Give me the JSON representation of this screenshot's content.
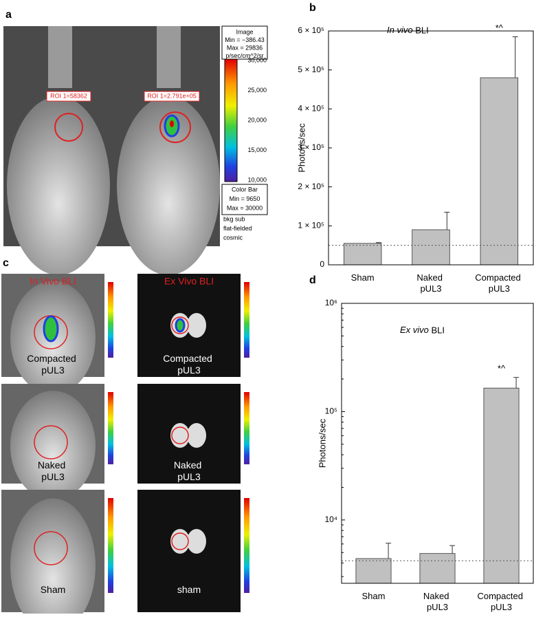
{
  "panel_a": {
    "label": "a",
    "image_box": [
      "Image",
      "Min = −386.43",
      "Max = 29836",
      "p/sec/cm^2/sr"
    ],
    "colorbar_ticks": [
      "30,000",
      "25,000",
      "20,000",
      "15,000",
      "10,000"
    ],
    "colorbar_box": [
      "Color Bar",
      "Min = 9650",
      "Max = 30000"
    ],
    "notes": [
      "bkg sub",
      "flat-fielded",
      "cosmic"
    ],
    "roi_labels": [
      "ROI 1=58362",
      "ROI 1=2.791e+05"
    ]
  },
  "panel_c": {
    "label": "c",
    "column_titles": [
      "In Vivo BLI",
      "Ex Vivo BLI"
    ],
    "image_labels": [
      [
        "Compacted pUL3",
        "Compacted pUL3"
      ],
      [
        "Naked pUL3",
        "Naked pUL3"
      ],
      [
        "Sham",
        "sham"
      ]
    ]
  },
  "chart_data": [
    {
      "type": "bar",
      "label": "b",
      "title": "In vivo BLI",
      "ylabel": "Photons/sec",
      "categories": [
        "Sham",
        "Naked pUL3",
        "Compacted pUL3"
      ],
      "values": [
        55000,
        90000,
        480000
      ],
      "errors": [
        2000,
        45000,
        105000
      ],
      "annotation": "*^",
      "reference_line": 50000,
      "color": "#c0c0c0",
      "log_scale": false,
      "ylim": [
        0,
        600000
      ],
      "yticks": [
        0,
        {
          "value": 100000,
          "label": "1 × 10⁵"
        },
        {
          "value": 200000,
          "label": "2 × 10⁵"
        },
        {
          "value": 300000,
          "label": "3 × 10⁵"
        },
        {
          "value": 400000,
          "label": "4 × 10⁵"
        },
        {
          "value": 500000,
          "label": "5 × 10⁵"
        },
        {
          "value": 600000,
          "label": "6 × 10⁵"
        }
      ]
    },
    {
      "type": "bar",
      "label": "d",
      "title": "Ex vivo BLI",
      "ylabel": "Photons/sec",
      "categories": [
        "Sham",
        "Naked pUL3",
        "Compacted pUL3"
      ],
      "values": [
        4400,
        4900,
        165000
      ],
      "errors": [
        1700,
        900,
        42000
      ],
      "annotation": "*^",
      "reference_line": 4200,
      "color": "#c0c0c0",
      "log_scale": true,
      "ylim": [
        2600,
        1000000
      ],
      "yticks": [
        {
          "value": 10000,
          "label": "10⁴"
        },
        {
          "value": 100000,
          "label": "10⁵"
        },
        {
          "value": 1000000,
          "label": "10⁶"
        }
      ]
    }
  ]
}
